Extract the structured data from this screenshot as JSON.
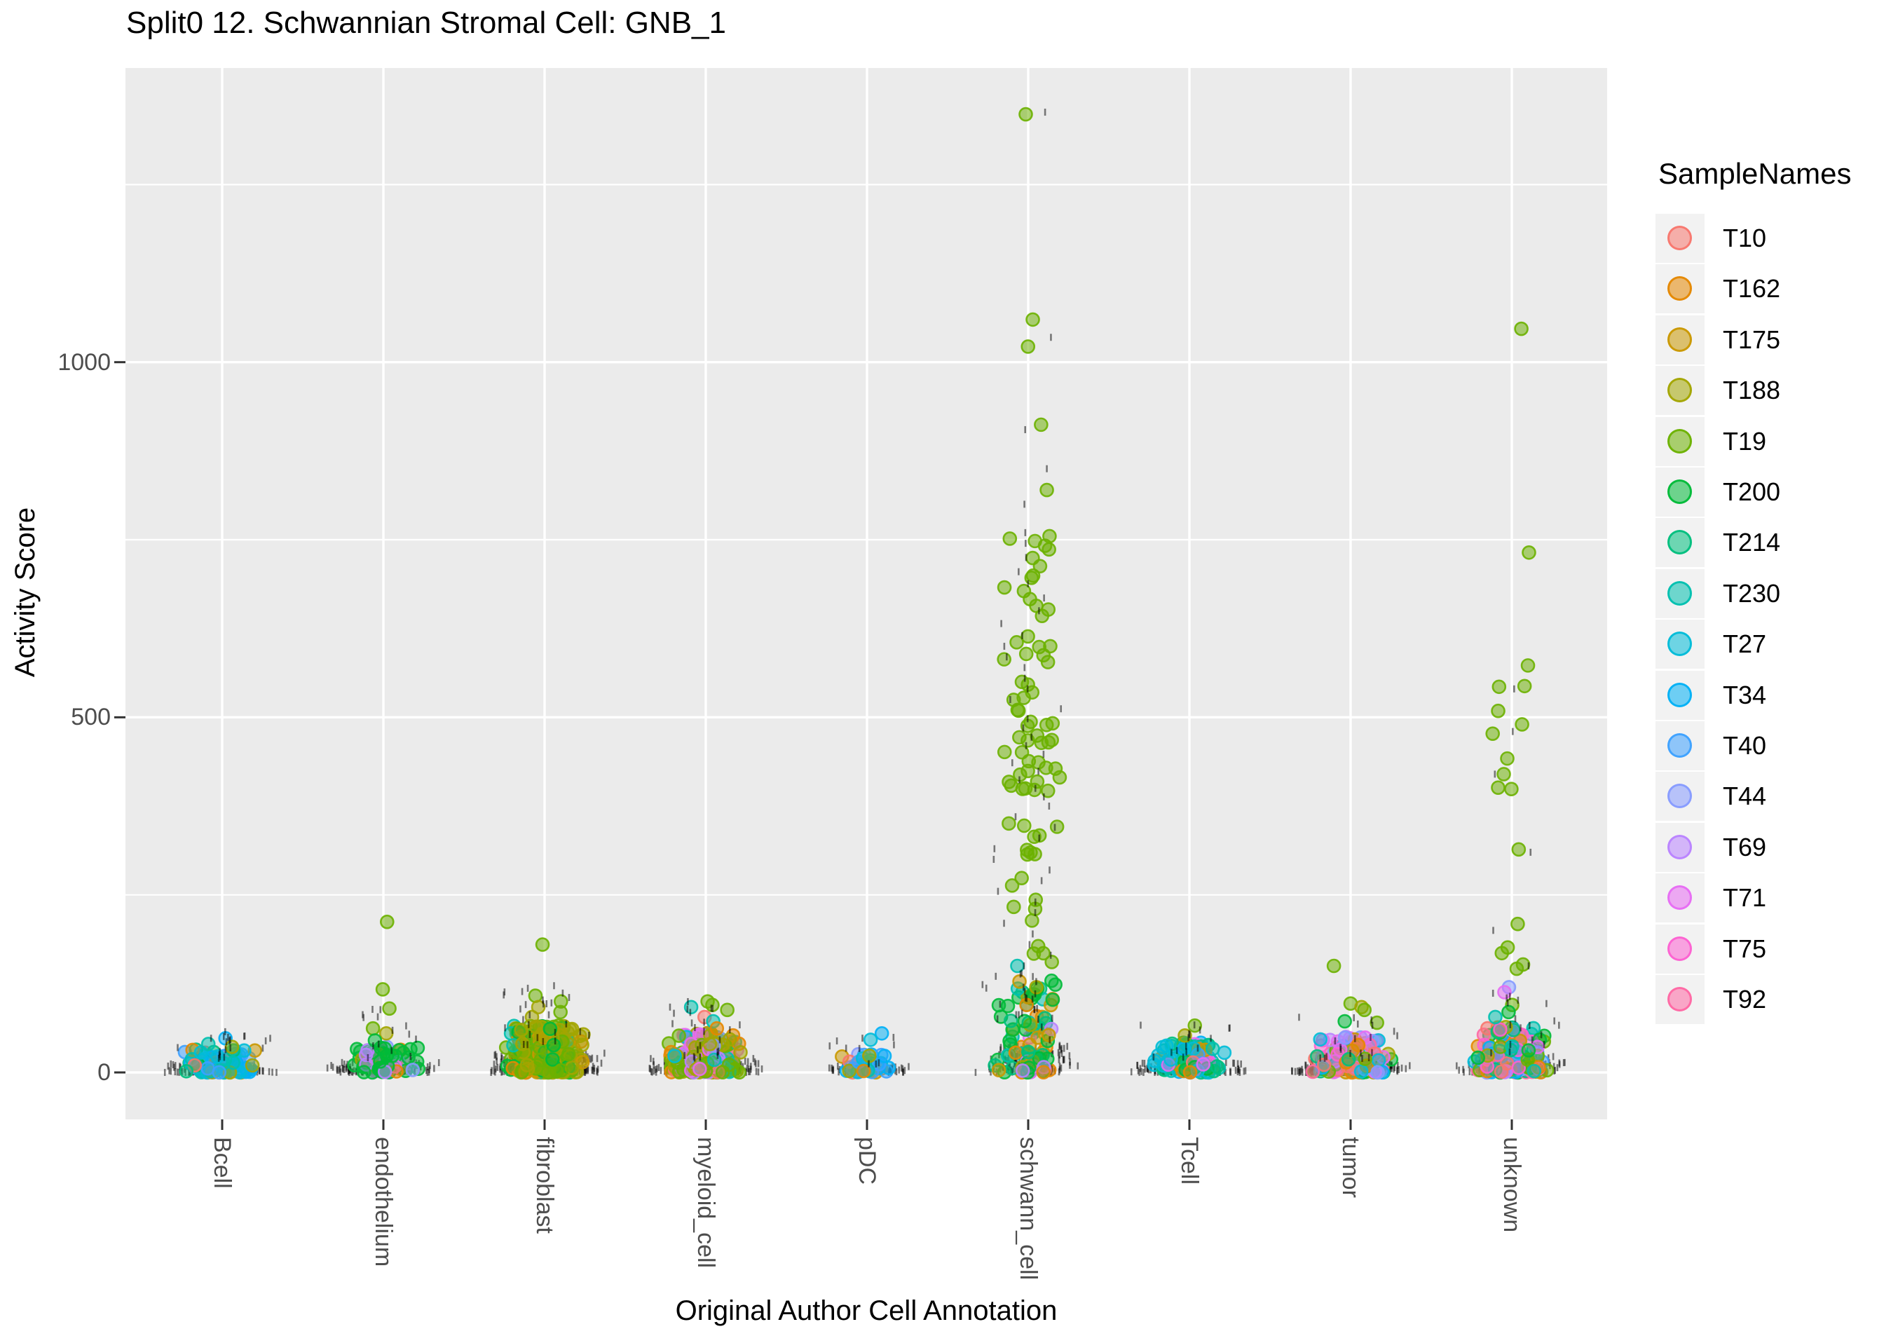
{
  "title": "Split0 12. Schwannian Stromal Cell: GNB_1",
  "axes": {
    "x_title": "Original Author Cell Annotation",
    "y_title": "Activity Score",
    "y_tick_labels": [
      "0",
      "500",
      "1000"
    ]
  },
  "legend": {
    "title": "SampleNames"
  },
  "chart_data": {
    "type": "scatter",
    "subtype": "jitter-strip",
    "title": "Split0 12. Schwannian Stromal Cell: GNB_1",
    "xlabel": "Original Author Cell Annotation",
    "ylabel": "Activity Score",
    "x_categories": [
      "Bcell",
      "endothelium",
      "fibroblast",
      "myeloid_cell",
      "pDC",
      "schwann_cell",
      "Tcell",
      "tumor",
      "unknown"
    ],
    "y_ticks": [
      0,
      500,
      1000
    ],
    "y_minor_ticks": [
      250,
      750,
      1250
    ],
    "ylim": [
      -66,
      1414
    ],
    "grid": true,
    "legend_position": "right",
    "panel_bg": "#EBEBEB",
    "grid_color": "#FFFFFF",
    "tick_text_color": "#4D4D4D",
    "black_marker": "|",
    "samples": [
      {
        "name": "T10",
        "color": "#F8766D"
      },
      {
        "name": "T162",
        "color": "#E58700"
      },
      {
        "name": "T175",
        "color": "#C99800"
      },
      {
        "name": "T188",
        "color": "#A3A500"
      },
      {
        "name": "T19",
        "color": "#6BB100"
      },
      {
        "name": "T200",
        "color": "#00BA38"
      },
      {
        "name": "T214",
        "color": "#00BF7D"
      },
      {
        "name": "T230",
        "color": "#00C0AF"
      },
      {
        "name": "T27",
        "color": "#00BCD8"
      },
      {
        "name": "T34",
        "color": "#00B0F6"
      },
      {
        "name": "T40",
        "color": "#3DA1FF"
      },
      {
        "name": "T44",
        "color": "#869BFF"
      },
      {
        "name": "T69",
        "color": "#B983FF"
      },
      {
        "name": "T71",
        "color": "#E76BF3"
      },
      {
        "name": "T75",
        "color": "#FD61D1"
      },
      {
        "name": "T92",
        "color": "#FF67A4"
      }
    ],
    "groups": [
      {
        "category": "Bcell",
        "black_base": {
          "n": 170,
          "y": [
            0,
            12
          ],
          "halfwidth": 86
        },
        "black_spikes": {
          "n": 20,
          "y": [
            12,
            58
          ],
          "halfwidth": 80
        },
        "black_spike_values": [],
        "clusters": [
          {
            "n": 90,
            "y": [
              0,
              32
            ],
            "bias": 1.6,
            "halfwidth": 56,
            "samples": [
              8,
              9,
              10,
              7,
              8,
              9,
              3,
              0,
              5,
              2,
              8,
              9,
              10,
              7,
              1,
              6
            ]
          }
        ],
        "outliers": [
          [
            9,
            48
          ],
          [
            7,
            40
          ],
          [
            3,
            36
          ]
        ]
      },
      {
        "category": "endothelium",
        "black_base": {
          "n": 150,
          "y": [
            0,
            14
          ],
          "halfwidth": 86
        },
        "black_spikes": {
          "n": 14,
          "y": [
            14,
            100
          ],
          "halfwidth": 70
        },
        "black_spike_values": [],
        "clusters": [
          {
            "n": 72,
            "y": [
              0,
              36
            ],
            "bias": 1.6,
            "halfwidth": 56,
            "samples": [
              5,
              5,
              5,
              5,
              12,
              5,
              3,
              11,
              5,
              13,
              1,
              5
            ]
          }
        ],
        "outliers": [
          [
            4,
            212
          ],
          [
            4,
            117
          ],
          [
            4,
            90
          ],
          [
            4,
            62
          ],
          [
            3,
            55
          ],
          [
            5,
            45
          ]
        ]
      },
      {
        "category": "fibroblast",
        "black_base": {
          "n": 300,
          "y": [
            0,
            28
          ],
          "halfwidth": 88
        },
        "black_spikes": {
          "n": 28,
          "y": [
            28,
            125
          ],
          "halfwidth": 82
        },
        "black_spike_values": [],
        "clusters": [
          {
            "n": 250,
            "y": [
              0,
              66
            ],
            "bias": 1.6,
            "halfwidth": 58,
            "samples": [
              3,
              4,
              3,
              4,
              3,
              4,
              5,
              3,
              4,
              7,
              3,
              4,
              5,
              1,
              2
            ]
          }
        ],
        "outliers": [
          [
            4,
            180
          ],
          [
            4,
            108
          ],
          [
            4,
            100
          ],
          [
            3,
            92
          ],
          [
            4,
            85
          ],
          [
            3,
            78
          ]
        ]
      },
      {
        "category": "myeloid_cell",
        "black_base": {
          "n": 260,
          "y": [
            0,
            20
          ],
          "halfwidth": 88
        },
        "black_spikes": {
          "n": 24,
          "y": [
            20,
            100
          ],
          "halfwidth": 80
        },
        "black_spike_values": [],
        "clusters": [
          {
            "n": 230,
            "y": [
              0,
              56
            ],
            "bias": 1.6,
            "halfwidth": 58,
            "samples": [
              3,
              4,
              3,
              4,
              3,
              4,
              1,
              0,
              7,
              8,
              3,
              4,
              12,
              13,
              2,
              11
            ]
          }
        ],
        "outliers": [
          [
            4,
            100
          ],
          [
            4,
            95
          ],
          [
            7,
            92
          ],
          [
            4,
            88
          ],
          [
            0,
            78
          ],
          [
            7,
            72
          ],
          [
            1,
            62
          ]
        ]
      },
      {
        "category": "pDC",
        "black_base": {
          "n": 115,
          "y": [
            0,
            10
          ],
          "halfwidth": 62
        },
        "black_spikes": {
          "n": 10,
          "y": [
            10,
            55
          ],
          "halfwidth": 58
        },
        "black_spike_values": [],
        "clusters": [
          {
            "n": 40,
            "y": [
              0,
              28
            ],
            "bias": 1.6,
            "halfwidth": 40,
            "samples": [
              9,
              10,
              8,
              11,
              7,
              2,
              1,
              0,
              9,
              10,
              3
            ]
          }
        ],
        "outliers": [
          [
            9,
            55
          ],
          [
            8,
            46
          ]
        ]
      },
      {
        "category": "schwann_cell",
        "black_base": {
          "n": 180,
          "y": [
            0,
            38
          ],
          "halfwidth": 80
        },
        "black_spikes": {
          "n": 20,
          "y": [
            38,
            140
          ],
          "halfwidth": 78
        },
        "black_spike_values": [
          1352,
          1035,
          905,
          850,
          800,
          760,
          745,
          725,
          705,
          688,
          668,
          650,
          632,
          615,
          600,
          585,
          570,
          555,
          540,
          525,
          512,
          498,
          485,
          472,
          460,
          448,
          436,
          424,
          412,
          400,
          388,
          375,
          360,
          345,
          330,
          315,
          300,
          285,
          270,
          255,
          240,
          225,
          210,
          195,
          180,
          165,
          150,
          135,
          120,
          105,
          90,
          75
        ],
        "clusters": [
          {
            "n": 85,
            "y": [
              0,
              130
            ],
            "bias": 1.6,
            "halfwidth": 58,
            "samples": [
              5,
              5,
              5,
              5,
              6,
              7,
              5,
              2,
              1,
              3,
              12,
              13,
              5,
              6,
              5,
              5
            ]
          },
          {
            "n": 10,
            "y": [
              150,
              300
            ],
            "bias": 1,
            "halfwidth": 50,
            "samples": [
              4
            ]
          },
          {
            "n": 9,
            "y": [
              300,
              395
            ],
            "bias": 1,
            "halfwidth": 50,
            "samples": [
              4
            ]
          },
          {
            "n": 26,
            "y": [
              395,
              500
            ],
            "bias": 1,
            "halfwidth": 48,
            "samples": [
              4
            ]
          },
          {
            "n": 12,
            "y": [
              500,
              600
            ],
            "bias": 1,
            "halfwidth": 50,
            "samples": [
              4
            ]
          },
          {
            "n": 11,
            "y": [
              600,
              700
            ],
            "bias": 1,
            "halfwidth": 50,
            "samples": [
              4
            ]
          },
          {
            "n": 6,
            "y": [
              700,
              770
            ],
            "bias": 1,
            "halfwidth": 48,
            "samples": [
              4
            ]
          }
        ],
        "outliers": [
          [
            4,
            1349
          ],
          [
            4,
            1060
          ],
          [
            4,
            1022
          ],
          [
            4,
            912
          ],
          [
            4,
            820
          ],
          [
            4,
            755
          ],
          [
            7,
            150
          ],
          [
            7,
            118
          ],
          [
            3,
            120
          ],
          [
            1,
            95
          ],
          [
            2,
            128
          ]
        ]
      },
      {
        "category": "Tcell",
        "black_base": {
          "n": 200,
          "y": [
            0,
            14
          ],
          "halfwidth": 86
        },
        "black_spikes": {
          "n": 16,
          "y": [
            14,
            68
          ],
          "halfwidth": 80
        },
        "black_spike_values": [],
        "clusters": [
          {
            "n": 110,
            "y": [
              0,
              42
            ],
            "bias": 1.6,
            "halfwidth": 56,
            "samples": [
              7,
              8,
              6,
              5,
              3,
              2,
              1,
              13,
              14,
              9,
              7,
              8,
              6,
              5,
              0,
              10
            ]
          }
        ],
        "outliers": [
          [
            4,
            66
          ],
          [
            3,
            52
          ]
        ]
      },
      {
        "category": "tumor",
        "black_base": {
          "n": 260,
          "y": [
            0,
            16
          ],
          "halfwidth": 88
        },
        "black_spikes": {
          "n": 20,
          "y": [
            16,
            88
          ],
          "halfwidth": 82
        },
        "black_spike_values": [],
        "clusters": [
          {
            "n": 150,
            "y": [
              0,
              50
            ],
            "bias": 1.6,
            "halfwidth": 58,
            "samples": [
              13,
              14,
              15,
              0,
              1,
              5,
              11,
              12,
              9,
              3,
              4,
              13,
              0,
              1,
              6,
              2,
              8
            ]
          }
        ],
        "outliers": [
          [
            4,
            150
          ],
          [
            4,
            97
          ],
          [
            3,
            92
          ],
          [
            4,
            88
          ],
          [
            5,
            72
          ],
          [
            4,
            70
          ]
        ]
      },
      {
        "category": "unknown",
        "black_base": {
          "n": 210,
          "y": [
            0,
            24
          ],
          "halfwidth": 80
        },
        "black_spikes": {
          "n": 18,
          "y": [
            24,
            115
          ],
          "halfwidth": 76
        },
        "black_spike_values": [
          540,
          480,
          420,
          310,
          200,
          150
        ],
        "clusters": [
          {
            "n": 150,
            "y": [
              0,
              64
            ],
            "bias": 1.6,
            "halfwidth": 56,
            "samples": [
              13,
              14,
              15,
              0,
              1,
              5,
              11,
              12,
              9,
              3,
              4,
              7,
              8,
              6,
              2,
              10,
              4,
              5
            ]
          }
        ],
        "outliers": [
          [
            4,
            1047
          ],
          [
            4,
            732
          ],
          [
            4,
            573
          ],
          [
            4,
            544
          ],
          [
            4,
            543
          ],
          [
            4,
            509
          ],
          [
            4,
            490
          ],
          [
            4,
            477
          ],
          [
            4,
            442
          ],
          [
            4,
            420
          ],
          [
            4,
            401
          ],
          [
            4,
            399
          ],
          [
            4,
            314
          ],
          [
            4,
            209
          ],
          [
            4,
            176
          ],
          [
            4,
            168
          ],
          [
            4,
            152
          ],
          [
            4,
            146
          ],
          [
            11,
            120
          ],
          [
            13,
            113
          ],
          [
            4,
            95
          ],
          [
            5,
            85
          ],
          [
            7,
            78
          ]
        ]
      }
    ]
  }
}
